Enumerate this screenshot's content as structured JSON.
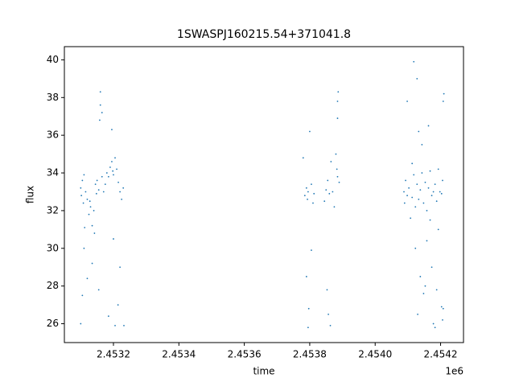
{
  "chart_data": {
    "type": "scatter",
    "title": "1SWASPJ160215.54+371041.8",
    "x_label": "time",
    "y_label": "flux",
    "x_offset_label": "1e6",
    "color": "#1f77b4",
    "grid": false,
    "xlim": [
      2453050,
      2454270
    ],
    "ylim": [
      25.0,
      40.7
    ],
    "xticks": [
      {
        "value": 2453200,
        "label": "2.4532"
      },
      {
        "value": 2453400,
        "label": "2.4534"
      },
      {
        "value": 2453600,
        "label": "2.4536"
      },
      {
        "value": 2453800,
        "label": "2.4538"
      },
      {
        "value": 2454000,
        "label": "2.4540"
      },
      {
        "value": 2454200,
        "label": "2.4542"
      }
    ],
    "yticks": [
      26,
      28,
      30,
      32,
      34,
      36,
      38,
      40
    ],
    "x": [
      2453100,
      2453102,
      2453105,
      2453108,
      2453110,
      2453115,
      2453120,
      2453125,
      2453130,
      2453135,
      2453140,
      2453142,
      2453145,
      2453148,
      2453150,
      2453155,
      2453158,
      2453160,
      2453165,
      2453170,
      2453175,
      2453180,
      2453185,
      2453190,
      2453195,
      2453198,
      2453200,
      2453205,
      2453210,
      2453215,
      2453220,
      2453225,
      2453230,
      2453232,
      2453105,
      2453110,
      2453120,
      2453135,
      2453155,
      2453185,
      2453200,
      2453220,
      2453160,
      2453165,
      2453195,
      2453100,
      2453112,
      2453128,
      2453214,
      2453205,
      2453785,
      2453790,
      2453793,
      2453795,
      2453800,
      2453805,
      2453810,
      2453813,
      2453790,
      2453797,
      2453845,
      2453850,
      2453855,
      2453860,
      2453865,
      2453870,
      2453875,
      2453853,
      2453857,
      2453885,
      2453887,
      2453883,
      2453890,
      2453885,
      2453795,
      2453780,
      2453863,
      2453805,
      2453880,
      2453885,
      2454088,
      2454090,
      2454093,
      2454098,
      2454103,
      2454108,
      2454113,
      2454118,
      2454123,
      2454128,
      2454133,
      2454138,
      2454143,
      2454148,
      2454153,
      2454158,
      2454163,
      2454168,
      2454173,
      2454178,
      2454183,
      2454188,
      2454193,
      2454198,
      2454203,
      2454206,
      2454208,
      2454210,
      2454208,
      2454206,
      2454118,
      2454128,
      2454133,
      2454138,
      2454148,
      2454158,
      2454173,
      2454178,
      2454188,
      2454098,
      2454123,
      2454130,
      2454143,
      2454153,
      2454163,
      2454183,
      2454193,
      2454203,
      2454113,
      2454168
    ],
    "y": [
      33.2,
      32.8,
      33.6,
      32.4,
      33.9,
      33.0,
      32.6,
      31.8,
      32.2,
      31.2,
      32.0,
      30.8,
      33.4,
      32.9,
      33.6,
      33.1,
      36.8,
      37.6,
      33.8,
      33.0,
      33.4,
      34.0,
      33.8,
      34.3,
      34.6,
      34.1,
      33.9,
      34.8,
      34.2,
      33.5,
      33.0,
      32.6,
      33.2,
      25.9,
      27.5,
      30.0,
      28.4,
      29.2,
      27.8,
      26.4,
      30.5,
      29.0,
      38.3,
      37.2,
      36.3,
      26.0,
      31.1,
      32.5,
      27.0,
      25.9,
      32.8,
      33.2,
      32.6,
      33.0,
      36.2,
      33.4,
      32.4,
      32.9,
      28.5,
      26.8,
      32.5,
      33.1,
      33.6,
      32.9,
      34.6,
      33.0,
      32.2,
      27.8,
      26.5,
      37.8,
      38.3,
      34.2,
      33.5,
      36.9,
      25.8,
      34.8,
      25.9,
      29.9,
      35.0,
      33.8,
      33.0,
      32.4,
      33.6,
      32.8,
      33.2,
      31.6,
      32.7,
      33.9,
      32.2,
      33.4,
      32.6,
      33.1,
      34.0,
      32.4,
      33.5,
      32.0,
      33.2,
      34.1,
      32.8,
      33.0,
      33.4,
      32.5,
      34.2,
      33.0,
      32.9,
      33.6,
      37.8,
      38.2,
      26.8,
      26.2,
      39.9,
      39.0,
      36.2,
      28.5,
      27.6,
      30.4,
      29.0,
      26.0,
      27.8,
      37.8,
      30.0,
      26.5,
      35.5,
      28.0,
      36.5,
      25.8,
      31.0,
      26.9,
      34.5,
      31.5
    ]
  }
}
